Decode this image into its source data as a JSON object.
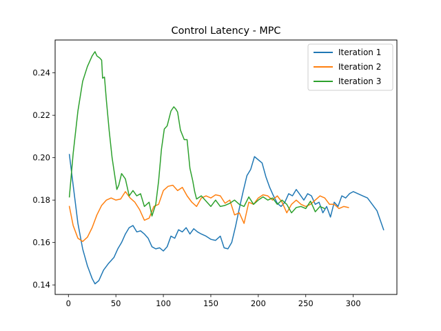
{
  "chart_data": {
    "type": "line",
    "title": "Control Latency - MPC",
    "xlabel": "",
    "ylabel": "",
    "xlim": [
      -14,
      346
    ],
    "ylim": [
      0.1355,
      0.2555
    ],
    "xticks": [
      0,
      50,
      100,
      150,
      200,
      250,
      300
    ],
    "yticks": [
      0.14,
      0.16,
      0.18,
      0.2,
      0.22,
      0.24
    ],
    "ytick_labels": [
      "0.14",
      "0.16",
      "0.18",
      "0.20",
      "0.22",
      "0.24"
    ],
    "grid": false,
    "legend": "top-right",
    "series": [
      {
        "name": "Iteration 1",
        "color": "#1f77b4",
        "x": [
          1,
          5,
          10,
          15,
          20,
          25,
          28,
          32,
          37,
          42,
          48,
          52,
          56,
          60,
          64,
          68,
          72,
          76,
          80,
          84,
          88,
          92,
          96,
          100,
          104,
          108,
          112,
          116,
          120,
          124,
          128,
          132,
          136,
          140,
          145,
          150,
          155,
          160,
          164,
          168,
          172,
          176,
          180,
          184,
          188,
          192,
          196,
          200,
          204,
          208,
          212,
          216,
          220,
          224,
          228,
          232,
          236,
          240,
          244,
          248,
          252,
          256,
          260,
          264,
          268,
          272,
          276,
          280,
          284,
          288,
          292,
          296,
          300,
          305,
          310,
          315,
          320,
          325,
          332
        ],
        "y": [
          0.2015,
          0.187,
          0.169,
          0.157,
          0.149,
          0.143,
          0.1405,
          0.142,
          0.147,
          0.15,
          0.153,
          0.157,
          0.16,
          0.164,
          0.167,
          0.168,
          0.165,
          0.1655,
          0.164,
          0.162,
          0.158,
          0.157,
          0.1575,
          0.156,
          0.158,
          0.163,
          0.162,
          0.166,
          0.165,
          0.167,
          0.164,
          0.1665,
          0.165,
          0.164,
          0.163,
          0.1615,
          0.161,
          0.163,
          0.1575,
          0.157,
          0.16,
          0.1675,
          0.176,
          0.184,
          0.1915,
          0.1945,
          0.2005,
          0.199,
          0.1975,
          0.191,
          0.186,
          0.182,
          0.1785,
          0.177,
          0.179,
          0.183,
          0.182,
          0.185,
          0.1825,
          0.18,
          0.183,
          0.182,
          0.178,
          0.179,
          0.174,
          0.177,
          0.172,
          0.179,
          0.177,
          0.182,
          0.181,
          0.183,
          0.184,
          0.183,
          0.182,
          0.181,
          0.178,
          0.175,
          0.166
        ]
      },
      {
        "name": "Iteration 2",
        "color": "#ff7f0e",
        "x": [
          1,
          5,
          10,
          15,
          20,
          25,
          30,
          35,
          40,
          45,
          50,
          55,
          60,
          65,
          70,
          75,
          80,
          85,
          90,
          95,
          100,
          105,
          110,
          115,
          120,
          125,
          130,
          135,
          140,
          145,
          150,
          155,
          160,
          165,
          170,
          175,
          180,
          185,
          190,
          195,
          200,
          205,
          210,
          215,
          220,
          225,
          230,
          235,
          240,
          245,
          250,
          255,
          260,
          265,
          270,
          275,
          280,
          285,
          290,
          295
        ],
        "y": [
          0.177,
          0.168,
          0.162,
          0.1605,
          0.1625,
          0.167,
          0.173,
          0.1775,
          0.18,
          0.181,
          0.18,
          0.1805,
          0.184,
          0.181,
          0.179,
          0.1755,
          0.1705,
          0.1715,
          0.177,
          0.178,
          0.1845,
          0.1865,
          0.187,
          0.1845,
          0.186,
          0.182,
          0.179,
          0.177,
          0.181,
          0.182,
          0.181,
          0.1825,
          0.182,
          0.1785,
          0.18,
          0.173,
          0.174,
          0.169,
          0.179,
          0.178,
          0.181,
          0.1825,
          0.182,
          0.18,
          0.182,
          0.179,
          0.174,
          0.178,
          0.18,
          0.178,
          0.177,
          0.178,
          0.18,
          0.182,
          0.181,
          0.178,
          0.178,
          0.176,
          0.177,
          0.1765
        ]
      },
      {
        "name": "Iteration 3",
        "color": "#2ca02c",
        "x": [
          1,
          5,
          10,
          15,
          20,
          25,
          28,
          30,
          33,
          35,
          36,
          38,
          40,
          43,
          46,
          49,
          51,
          53,
          56,
          60,
          64,
          68,
          72,
          76,
          80,
          85,
          88,
          92,
          95,
          98,
          101,
          104,
          108,
          111,
          113,
          115,
          118,
          122,
          125,
          128,
          131,
          133,
          135,
          140,
          145,
          150,
          155,
          160,
          165,
          170,
          175,
          180,
          185,
          190,
          195,
          200,
          205,
          210,
          215,
          220,
          225,
          230,
          235,
          240,
          245,
          250,
          255,
          260,
          265,
          270
        ],
        "y": [
          0.1815,
          0.202,
          0.222,
          0.236,
          0.243,
          0.248,
          0.25,
          0.248,
          0.247,
          0.246,
          0.2375,
          0.238,
          0.227,
          0.2125,
          0.2,
          0.191,
          0.185,
          0.187,
          0.1925,
          0.19,
          0.182,
          0.1845,
          0.182,
          0.183,
          0.177,
          0.179,
          0.1725,
          0.178,
          0.189,
          0.204,
          0.2135,
          0.215,
          0.222,
          0.224,
          0.223,
          0.2215,
          0.213,
          0.2085,
          0.2085,
          0.195,
          0.189,
          0.184,
          0.1805,
          0.182,
          0.1795,
          0.177,
          0.18,
          0.177,
          0.1775,
          0.1785,
          0.18,
          0.178,
          0.177,
          0.1815,
          0.178,
          0.18,
          0.1815,
          0.18,
          0.181,
          0.178,
          0.18,
          0.178,
          0.174,
          0.1765,
          0.177,
          0.176,
          0.1795,
          0.1745,
          0.177,
          0.176
        ]
      }
    ]
  }
}
